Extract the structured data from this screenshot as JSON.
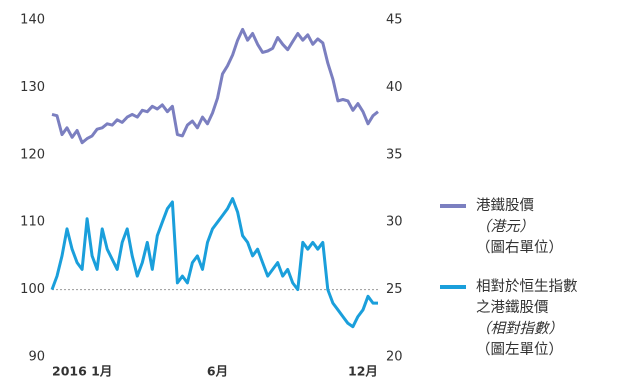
{
  "chart_data": {
    "type": "line",
    "categories": [
      "2016 1月",
      null,
      null,
      null,
      null,
      null,
      null,
      null,
      null,
      null,
      null,
      null,
      null,
      null,
      null,
      null,
      null,
      null,
      null,
      null,
      null,
      null,
      null,
      null,
      null,
      null,
      null,
      null,
      null,
      null,
      null,
      null,
      null,
      "6月",
      null,
      null,
      null,
      null,
      null,
      null,
      null,
      null,
      null,
      null,
      null,
      null,
      null,
      null,
      null,
      null,
      null,
      null,
      null,
      null,
      null,
      null,
      null,
      null,
      null,
      null,
      null,
      null,
      "12月",
      null,
      null,
      null
    ],
    "ylim": [
      90,
      140
    ],
    "yticks": [
      90,
      100,
      110,
      120,
      130,
      140
    ],
    "y2lim": [
      20,
      45
    ],
    "y2ticks": [
      20,
      25,
      30,
      35,
      40,
      45
    ],
    "reference_line": 100,
    "grid": false,
    "legend": "right",
    "series": [
      {
        "name": "港鐵股價",
        "unit": "（港元）",
        "note": "（圖右單位）",
        "color": "#7b7fc0",
        "axis": "y2",
        "values": [
          38,
          37.9,
          36.5,
          37,
          36.3,
          36.8,
          35.9,
          36.2,
          36.4,
          36.9,
          37,
          37.3,
          37.2,
          37.6,
          37.4,
          37.8,
          38,
          37.8,
          38.3,
          38.2,
          38.6,
          38.4,
          38.7,
          38.2,
          38.6,
          36.5,
          36.4,
          37.2,
          37.5,
          37,
          37.8,
          37.3,
          38.1,
          39.2,
          41,
          41.6,
          42.4,
          43.5,
          44.3,
          43.5,
          44,
          43.2,
          42.6,
          42.7,
          42.9,
          43.7,
          43.2,
          42.8,
          43.4,
          44,
          43.5,
          43.9,
          43.2,
          43.6,
          43.3,
          41.8,
          40.6,
          39,
          39.1,
          39,
          38.3,
          38.8,
          38.2,
          37.3,
          37.9,
          38.2
        ]
      },
      {
        "name": "相對於恒生指數之港鐵股價",
        "unit": "（相對指數）",
        "note": "（圖左單位）",
        "color": "#1a9fdb",
        "axis": "y",
        "values": [
          100,
          102,
          105,
          109,
          106,
          104,
          103,
          110.5,
          105,
          103,
          109,
          106,
          104.5,
          103,
          107,
          109,
          105,
          102,
          104,
          107,
          103,
          108,
          110,
          112,
          113,
          101,
          102,
          101,
          104,
          105,
          103,
          107,
          109,
          110,
          111,
          112,
          113.5,
          111.5,
          108,
          107,
          105,
          106,
          104,
          102,
          103,
          104,
          102,
          103,
          101,
          100,
          107,
          106,
          107,
          106,
          107,
          100,
          98,
          97,
          96,
          95,
          94.5,
          96,
          97,
          99,
          98,
          98
        ]
      }
    ]
  }
}
